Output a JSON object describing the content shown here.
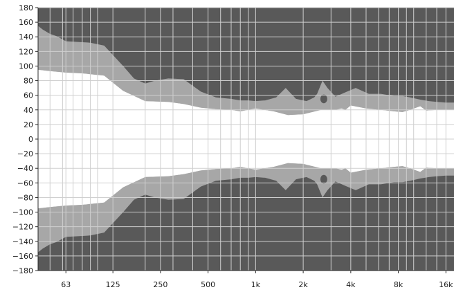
{
  "chart_data": {
    "type": "area",
    "title": "",
    "xlabel": "",
    "ylabel": "",
    "x_scale": "log",
    "xlim": [
      42,
      18000
    ],
    "ylim": [
      -180,
      180
    ],
    "grid": true,
    "legend": "none",
    "y_ticks": [
      180,
      160,
      140,
      120,
      100,
      80,
      60,
      40,
      20,
      0,
      -20,
      -40,
      -60,
      -80,
      -100,
      -120,
      -140,
      -160,
      -180
    ],
    "y_tick_labels": [
      "180",
      "160",
      "140",
      "120",
      "100",
      "80",
      "60",
      "40",
      "20",
      "0",
      "−20",
      "−40",
      "−60",
      "−80",
      "−100",
      "−120",
      "−140",
      "−160",
      "−180"
    ],
    "x_major_ticks": [
      63,
      125,
      250,
      500,
      1000,
      2000,
      4000,
      8000,
      16000
    ],
    "x_major_labels": [
      "63",
      "125",
      "250",
      "500",
      "1k",
      "2k",
      "4k",
      "8k",
      "16k"
    ],
    "x_minor_ticks": [
      50,
      60,
      70,
      80,
      90,
      100,
      200,
      300,
      400,
      600,
      700,
      800,
      900,
      3000,
      5000,
      6000,
      7000,
      9000,
      10000,
      12000,
      14000
    ],
    "colors": {
      "outer_region": "#595959",
      "band_region": "#a7a7a7",
      "clear_region": "#ffffff",
      "grid": "#cfcfcf",
      "axis": "#2b2b2b"
    },
    "series": [
      {
        "values_role": "band-outer",
        "x": [
          42,
          45,
          50,
          55,
          63,
          75,
          90,
          110,
          145,
          170,
          200,
          230,
          280,
          350,
          450,
          560,
          700,
          800,
          900,
          1000,
          1150,
          1350,
          1550,
          1800,
          2100,
          2350,
          2450,
          2650,
          2850,
          3200,
          3700,
          4300,
          5200,
          6200,
          7500,
          8500,
          9500,
          11000,
          12500,
          14000,
          16000,
          18000
        ],
        "values": [
          155,
          150,
          144,
          141,
          134,
          133,
          132,
          128,
          100,
          83,
          76,
          80,
          83,
          82,
          65,
          57,
          55,
          53,
          53,
          52,
          53,
          57,
          70,
          55,
          52,
          57,
          62,
          80,
          70,
          58,
          64,
          70,
          62,
          62,
          59,
          59,
          57,
          54,
          52,
          51,
          50,
          50
        ]
      },
      {
        "values_role": "band-inner",
        "x": [
          42,
          50,
          63,
          80,
          110,
          145,
          200,
          280,
          350,
          450,
          560,
          700,
          800,
          1000,
          1300,
          1600,
          2000,
          2600,
          3200,
          3500,
          3700,
          4000,
          5000,
          6200,
          7500,
          8500,
          9500,
          11000,
          12000,
          14000,
          16000,
          18000
        ],
        "values": [
          95,
          93,
          91,
          90,
          87,
          66,
          52,
          51,
          48,
          43,
          41,
          40,
          38,
          42,
          38,
          33,
          34,
          40,
          40,
          42,
          40,
          46,
          42,
          40,
          38,
          37,
          40,
          45,
          39,
          40,
          40,
          40
        ]
      }
    ],
    "annotations_dark_blob": {
      "center_x": 2700,
      "center_y": 55,
      "ry": 6
    }
  }
}
